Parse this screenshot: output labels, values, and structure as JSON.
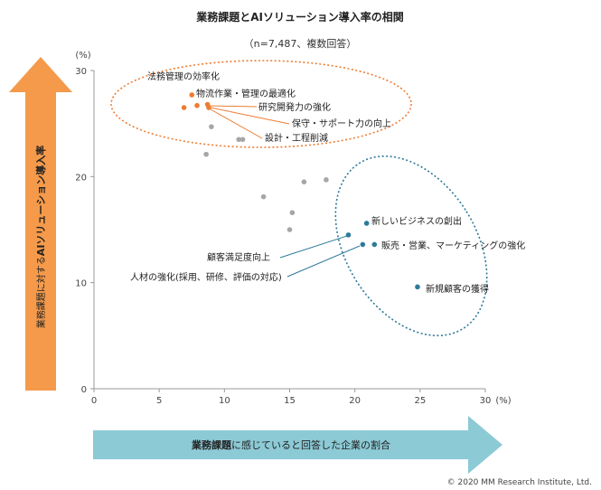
{
  "chart_data": {
    "type": "scatter",
    "title": "業務課題とAIソリューション導入率の相関",
    "subtitle": "（n=7,487、複数回答）",
    "xlabel_bold": "業務課題",
    "xlabel_rest": "に感じていると回答した企業の割合",
    "ylabel_small": "業務課題に対する",
    "ylabel_bold": "AIソリューション導入率",
    "x_unit": "(%)",
    "y_unit": "(%)",
    "xlim": [
      0,
      30
    ],
    "ylim": [
      0,
      30
    ],
    "x_ticks": [
      "0",
      "5",
      "10",
      "15",
      "20",
      "25",
      "30"
    ],
    "y_ticks": [
      "0",
      "10",
      "20",
      "30"
    ],
    "colors": {
      "high": "#ED7D31",
      "low": "#2E7A9A",
      "other": "#A6A6A6",
      "y_arrow": "#F59A4A",
      "x_arrow": "#8CCAD6"
    },
    "points": [
      {
        "x": 7.5,
        "y": 27.7,
        "group": "high"
      },
      {
        "x": 6.9,
        "y": 26.5,
        "group": "high"
      },
      {
        "x": 7.9,
        "y": 26.7,
        "group": "high"
      },
      {
        "x": 8.7,
        "y": 26.8,
        "group": "high"
      },
      {
        "x": 8.8,
        "y": 26.5,
        "group": "high"
      },
      {
        "x": 9.0,
        "y": 24.7,
        "group": "other"
      },
      {
        "x": 11.1,
        "y": 23.5,
        "group": "other"
      },
      {
        "x": 11.4,
        "y": 23.5,
        "group": "other"
      },
      {
        "x": 8.6,
        "y": 22.1,
        "group": "other"
      },
      {
        "x": 16.1,
        "y": 19.5,
        "group": "other"
      },
      {
        "x": 17.8,
        "y": 19.7,
        "group": "other"
      },
      {
        "x": 13.0,
        "y": 18.1,
        "group": "other"
      },
      {
        "x": 15.2,
        "y": 16.6,
        "group": "other"
      },
      {
        "x": 15.0,
        "y": 15.0,
        "group": "other"
      },
      {
        "x": 20.9,
        "y": 15.6,
        "group": "low"
      },
      {
        "x": 19.5,
        "y": 14.5,
        "group": "low"
      },
      {
        "x": 20.6,
        "y": 13.6,
        "group": "low"
      },
      {
        "x": 21.5,
        "y": 13.6,
        "group": "low"
      },
      {
        "x": 24.8,
        "y": 9.6,
        "group": "low"
      }
    ],
    "labels": [
      {
        "text": "法務管理の効率化",
        "point": 0
      },
      {
        "text": "物流作業・管理の最適化",
        "point": 0
      },
      {
        "text": "研究開発力の強化",
        "point": 2
      },
      {
        "text": "保守・サポート力の向上",
        "point": 3
      },
      {
        "text": "設計・工程削減",
        "point": 4
      },
      {
        "text": "新しいビジネスの創出",
        "point": 14
      },
      {
        "text": "顧客満足度向上",
        "point": 15
      },
      {
        "text": "販売・営業、マーケティングの強化",
        "point": 17
      },
      {
        "text": "人材の強化(採用、研修、評価の対応)",
        "point": 16
      },
      {
        "text": "新規顧客の獲得",
        "point": 18
      }
    ]
  },
  "copyright": "© 2020 MM Research Institute, Ltd."
}
